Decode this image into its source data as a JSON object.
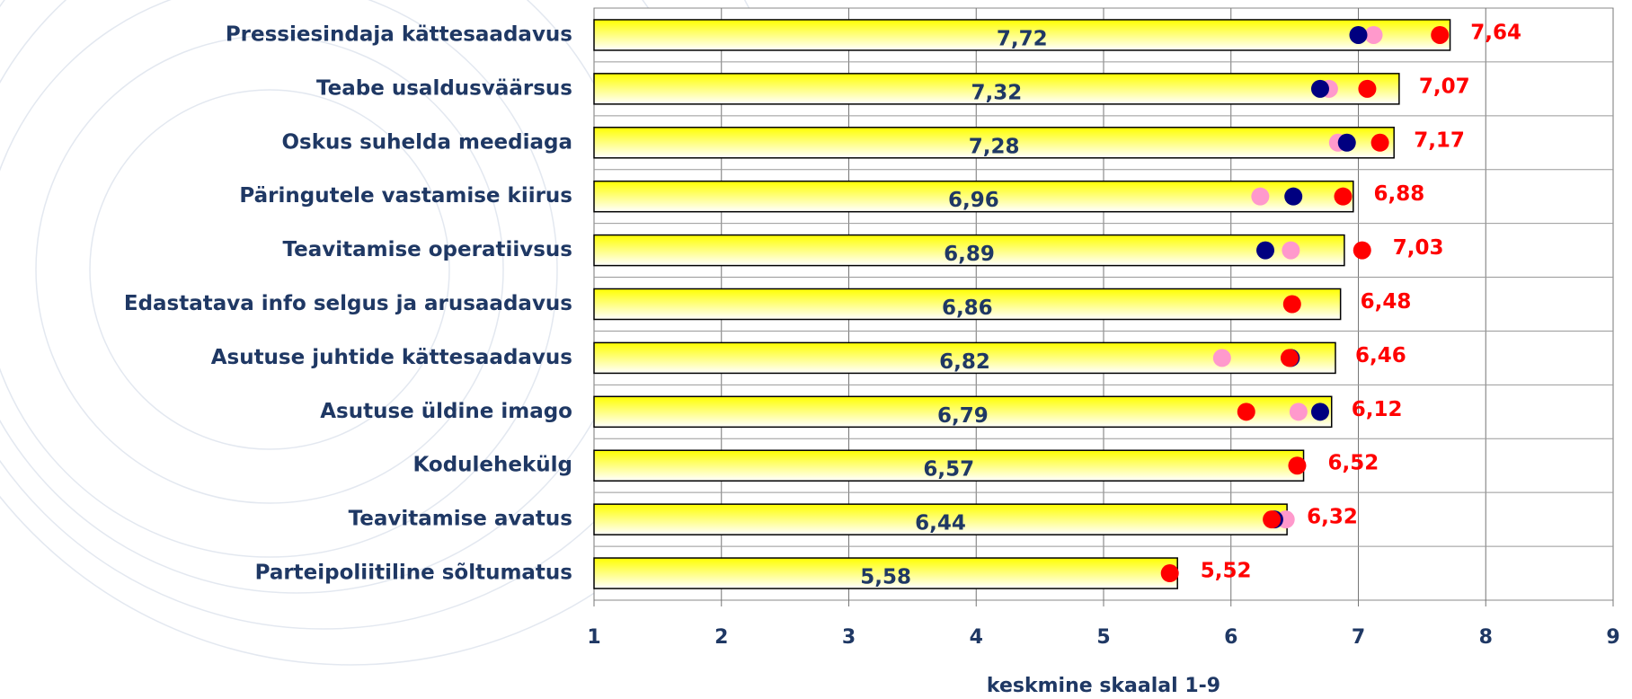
{
  "chart_data": {
    "type": "bar",
    "categories": [
      "Pressiesindaja kättesaadavus",
      "Teabe usaldusväärsus",
      "Oskus suhelda meediaga",
      "Päringutele vastamise kiirus",
      "Teavitamise operatiivsus",
      "Edastatava info selgus ja arusaadavus",
      "Asutuse juhtide kättesaadavus",
      "Asutuse üldine imago",
      "Kodulehekülg",
      "Teavitamise avatus",
      "Parteipoliitiline sõltumatus"
    ],
    "values": [
      7.72,
      7.32,
      7.28,
      6.96,
      6.89,
      6.86,
      6.82,
      6.79,
      6.57,
      6.44,
      5.58
    ],
    "value_labels": [
      "7,72",
      "7,32",
      "7,28",
      "6,96",
      "6,89",
      "6,86",
      "6,82",
      "6,79",
      "6,57",
      "6,44",
      "5,58"
    ],
    "color": "#ffff00",
    "series": [
      {
        "color": "#ff0000",
        "values": [
          7.64,
          7.07,
          7.17,
          6.88,
          7.03,
          6.48,
          6.46,
          6.12,
          6.52,
          6.32,
          5.52
        ],
        "value_labels": [
          "7,64",
          "7,07",
          "7,17",
          "6,88",
          "7,03",
          "6,48",
          "6,46",
          "6,12",
          "6,52",
          "6,32",
          "5,52"
        ]
      },
      {
        "color": "#000080",
        "values": [
          7.0,
          6.7,
          6.91,
          6.49,
          6.27,
          null,
          6.47,
          6.7,
          null,
          6.34,
          null
        ]
      },
      {
        "color": "#ff99cc",
        "values": [
          7.12,
          6.77,
          6.84,
          6.23,
          6.47,
          null,
          5.93,
          6.53,
          null,
          6.43,
          null
        ]
      }
    ],
    "xlim": [
      1,
      9
    ],
    "xticks": [
      1,
      2,
      3,
      4,
      5,
      6,
      7,
      8,
      9
    ],
    "xlabel": "keskmine skaalal 1-9",
    "grid": true
  }
}
